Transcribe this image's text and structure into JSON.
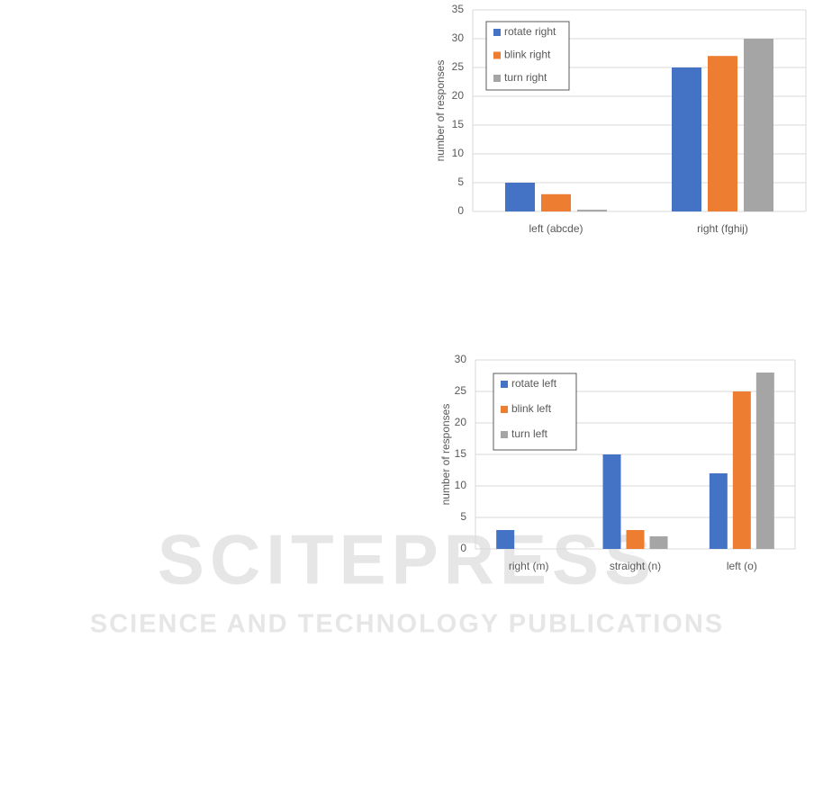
{
  "watermark": {
    "title": "SCITEPRESS",
    "subtitle": "SCIENCE AND TECHNOLOGY PUBLICATIONS"
  },
  "chart_data": [
    {
      "type": "bar",
      "y_label": "number of responses",
      "categories": [
        "left (abcde)",
        "right (fghij)"
      ],
      "series": [
        {
          "name": "rotate right",
          "color": "#4472c4",
          "values": [
            5,
            25
          ]
        },
        {
          "name": "blink right",
          "color": "#ed7d31",
          "values": [
            3,
            27
          ]
        },
        {
          "name": "turn right",
          "color": "#a5a5a5",
          "values": [
            0.3,
            30
          ]
        }
      ],
      "ylim": [
        0,
        35
      ],
      "yticks": [
        0,
        5,
        10,
        15,
        20,
        25,
        30,
        35
      ],
      "grid": true,
      "legend": "top-left"
    },
    {
      "type": "bar",
      "y_label": "number of responses",
      "categories": [
        "right (m)",
        "straight (n)",
        "left (o)"
      ],
      "series": [
        {
          "name": "rotate left",
          "color": "#4472c4",
          "values": [
            3,
            15,
            12
          ]
        },
        {
          "name": "blink left",
          "color": "#ed7d31",
          "values": [
            0,
            3,
            25
          ]
        },
        {
          "name": "turn left",
          "color": "#a5a5a5",
          "values": [
            0,
            2,
            28
          ]
        }
      ],
      "ylim": [
        0,
        30
      ],
      "yticks": [
        0,
        5,
        10,
        15,
        20,
        25,
        30
      ],
      "grid": true,
      "legend": "top-left"
    }
  ]
}
